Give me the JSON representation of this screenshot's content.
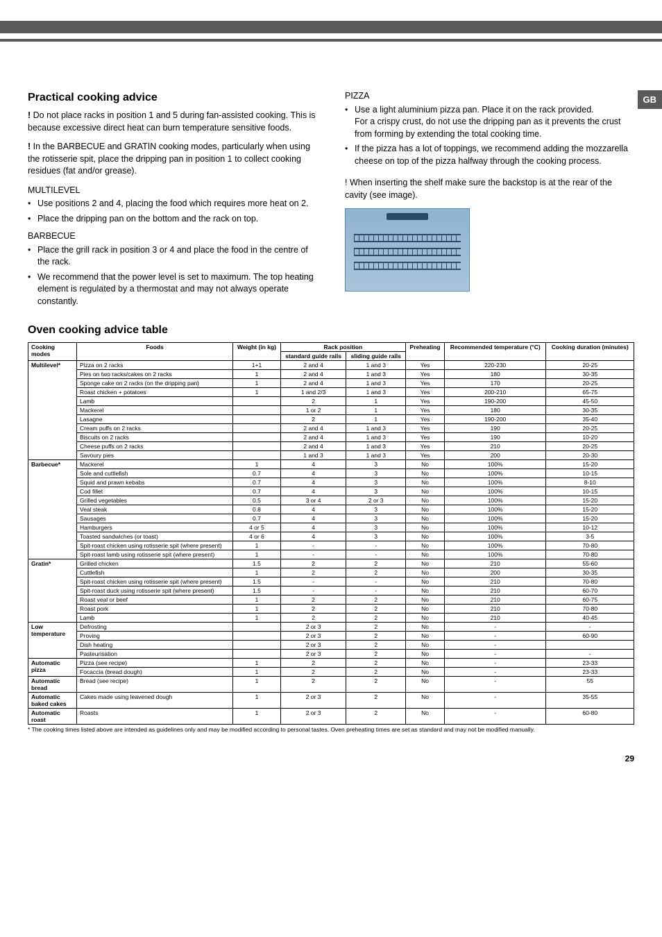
{
  "locale_tab": "GB",
  "left": {
    "title": "Practical cooking advice",
    "p1_lead": "!",
    "p1": " Do not place racks in position 1 and 5 during fan-assisted cooking. This is because excessive direct heat can burn temperature sensitive foods.",
    "p2_lead": "!",
    "p2": " In the BARBECUE and GRATIN cooking modes, particularly when using the rotisserie spit, place the dripping pan in position 1 to collect cooking residues (fat and/or grease).",
    "multi_h": "MULTILEVEL",
    "multi_b1": "Use positions 2 and 4, placing the food which requires more heat on 2.",
    "multi_b2": "Place the dripping pan on the bottom and the rack on top.",
    "bbq_h": "BARBECUE",
    "bbq_b1": "Place the grill rack in position 3 or 4 and place the food in the centre of the rack.",
    "bbq_b2": "We recommend that the power level is set to maximum. The top heating element is regulated by a thermostat and may not always operate constantly."
  },
  "right": {
    "pizza_h": "PIZZA",
    "pizza_b1": "Use a light aluminium pizza pan. Place it on the rack provided.",
    "pizza_b1b": "For a crispy crust, do not use the dripping pan as it prevents the crust from forming by extending the total cooking time.",
    "pizza_b2": "If the pizza has a lot of toppings, we recommend adding the mozzarella cheese on top of the pizza halfway through the cooking process.",
    "note": "! When inserting the shelf make sure the backstop is at the rear of the cavity (see image)."
  },
  "table_title": "Oven cooking advice table",
  "headers": {
    "modes": "Cooking modes",
    "foods": "Foods",
    "weight": "Weight (in kg)",
    "rackpos": "Rack position",
    "std": "standard guide rails",
    "slide": "sliding guide rails",
    "preheat": "Preheating",
    "temp": "Recommended temperature (°C)",
    "duration": "Cooking duration (minutes)"
  },
  "modes": {
    "multilevel": "Multilevel*",
    "barbecue": "Barbecue*",
    "gratin": "Gratin*",
    "lowtemp": "Low temperature",
    "apizza": "Automatic pizza",
    "abread": "Automatic bread",
    "acakes": "Automatic baked cakes",
    "aroast": "Automatic roast"
  },
  "rows": {
    "ml": [
      [
        "Pizza on 2 racks",
        "1+1",
        "2 and 4",
        "1 and 3",
        "Yes",
        "220-230",
        "20-25"
      ],
      [
        "Pies on two racks/cakes on 2 racks",
        "1",
        "2 and 4",
        "1 and 3",
        "Yes",
        "180",
        "30-35"
      ],
      [
        "Sponge cake on 2 racks (on the dripping pan)",
        "1",
        "2 and 4",
        "1 and 3",
        "Yes",
        "170",
        "20-25"
      ],
      [
        "Roast chicken + potatoes",
        "1",
        "1 and 2/3",
        "1 and 3",
        "Yes",
        "200-210",
        "65-75"
      ],
      [
        "Lamb",
        "",
        "2",
        "1",
        "Yes",
        "190-200",
        "45-50"
      ],
      [
        "Mackerel",
        "",
        "1 or 2",
        "1",
        "Yes",
        "180",
        "30-35"
      ],
      [
        "Lasagne",
        "",
        "2",
        "1",
        "Yes",
        "190-200",
        "35-40"
      ],
      [
        "Cream puffs on 2 racks",
        "",
        "2 and 4",
        "1 and 3",
        "Yes",
        "190",
        "20-25"
      ],
      [
        "Biscuits on 2 racks",
        "",
        "2 and 4",
        "1 and 3",
        "Yes",
        "190",
        "10-20"
      ],
      [
        "Cheese puffs on 2 racks",
        "",
        "2 and 4",
        "1 and 3",
        "Yes",
        "210",
        "20-25"
      ],
      [
        "Savoury pies",
        "",
        "1 and 3",
        "1 and 3",
        "Yes",
        "200",
        "20-30"
      ]
    ],
    "bbq": [
      [
        "Mackerel",
        "1",
        "4",
        "3",
        "No",
        "100%",
        "15-20"
      ],
      [
        "Sole and cuttlefish",
        "0.7",
        "4",
        "3",
        "No",
        "100%",
        "10-15"
      ],
      [
        "Squid and prawn kebabs",
        "0.7",
        "4",
        "3",
        "No",
        "100%",
        "8-10"
      ],
      [
        "Cod fillet",
        "0.7",
        "4",
        "3",
        "No",
        "100%",
        "10-15"
      ],
      [
        "Grilled vegetables",
        "0.5",
        "3 or 4",
        "2 or 3",
        "No",
        "100%",
        "15-20"
      ],
      [
        "Veal steak",
        "0.8",
        "4",
        "3",
        "No",
        "100%",
        "15-20"
      ],
      [
        "Sausages",
        "0.7",
        "4",
        "3",
        "No",
        "100%",
        "15-20"
      ],
      [
        "Hamburgers",
        "4 or 5",
        "4",
        "3",
        "No",
        "100%",
        "10-12"
      ],
      [
        "Toasted sandwiches (or toast)",
        "4 or 6",
        "4",
        "3",
        "No",
        "100%",
        "3-5"
      ],
      [
        "Spit-roast chicken using rotisserie spit (where present)",
        "1",
        "-",
        "-",
        "No",
        "100%",
        "70-80"
      ],
      [
        "Spit-roast lamb using rotisserie spit (where present)",
        "1",
        "-",
        "-",
        "No",
        "100%",
        "70-80"
      ]
    ],
    "gr": [
      [
        "Grilled chicken",
        "1.5",
        "2",
        "2",
        "No",
        "210",
        "55-60"
      ],
      [
        "Cuttlefish",
        "1",
        "2",
        "2",
        "No",
        "200",
        "30-35"
      ],
      [
        "Spit-roast chicken using rotisserie spit (where present)",
        "1.5",
        "-",
        "-",
        "No",
        "210",
        "70-80"
      ],
      [
        "Spit-roast duck using rotisserie spit (where present)",
        "1.5",
        "-",
        "-",
        "No",
        "210",
        "60-70"
      ],
      [
        "Roast veal or beef",
        "1",
        "2",
        "2",
        "No",
        "210",
        "60-75"
      ],
      [
        "Roast pork",
        "1",
        "2",
        "2",
        "No",
        "210",
        "70-80"
      ],
      [
        "Lamb",
        "1",
        "2",
        "2",
        "No",
        "210",
        "40-45"
      ]
    ],
    "lt": [
      [
        "Defrosting",
        "",
        "2 or 3",
        "2",
        "No",
        "-",
        "-"
      ],
      [
        "Proving",
        "",
        "2 or 3",
        "2",
        "No",
        "-",
        "60-90"
      ],
      [
        "Dish heating",
        "",
        "2 or 3",
        "2",
        "No",
        "-",
        ""
      ],
      [
        "Pasteurisation",
        "",
        "2 or 3",
        "2",
        "No",
        "-",
        "-"
      ]
    ],
    "ap": [
      [
        "Pizza (see recipe)",
        "1",
        "2",
        "2",
        "No",
        "-",
        "23-33"
      ],
      [
        "Focaccia (bread dough)",
        "1",
        "2",
        "2",
        "No",
        "-",
        "23-33"
      ]
    ],
    "ab": [
      [
        "Bread (see recipe)",
        "1",
        "2",
        "2",
        "No",
        "-",
        "55"
      ]
    ],
    "ac": [
      [
        "Cakes made using leavened dough",
        "1",
        "2 or 3",
        "2",
        "No",
        "-",
        "35-55"
      ]
    ],
    "ar": [
      [
        "Roasts",
        "1",
        "2 or 3",
        "2",
        "No",
        "-",
        "60-80"
      ]
    ]
  },
  "footnote": "* The cooking times listed above are intended as guidelines only and may be modified according to personal tastes. Oven preheating times are set as standard and may not be modified manually.",
  "pagenum": "29"
}
